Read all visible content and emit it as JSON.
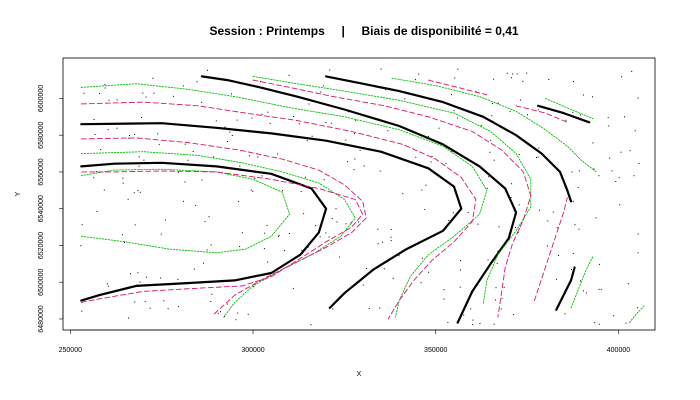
{
  "chart_data": {
    "type": "contour",
    "title": "Session : Printemps     |     Biais de disponibilité = 0,41",
    "xlabel": "X",
    "ylabel": "Y",
    "xlim": [
      248000,
      410000
    ],
    "ylim": [
      6474000,
      6622000
    ],
    "x_ticks": [
      250000,
      300000,
      350000,
      400000
    ],
    "x_tick_labels": [
      "250000",
      "300000",
      "350000",
      "400000"
    ],
    "y_ticks": [
      6480000,
      6500000,
      6520000,
      6540000,
      6560000,
      6580000,
      6600000
    ],
    "y_tick_labels": [
      "6480000",
      "6500000",
      "6520000",
      "6540000",
      "6560000",
      "6580000",
      "6600000"
    ],
    "grid": false,
    "colors": {
      "black": "#000000",
      "green": "#00c000",
      "pink": "#e0106f",
      "frame": "#000000"
    },
    "series": [
      {
        "style": "black",
        "points": [
          [
            253000,
            6490000
          ],
          [
            258000,
            6493000
          ],
          [
            268000,
            6498000
          ],
          [
            282000,
            6499500
          ],
          [
            295000,
            6501000
          ],
          [
            305000,
            6505000
          ],
          [
            313000,
            6515000
          ],
          [
            318000,
            6527000
          ],
          [
            320000,
            6540000
          ],
          [
            316000,
            6551000
          ],
          [
            305000,
            6559000
          ],
          [
            290000,
            6563000
          ],
          [
            275000,
            6565000
          ],
          [
            262000,
            6564500
          ],
          [
            253000,
            6563000
          ]
        ]
      },
      {
        "style": "black",
        "points": [
          [
            253000,
            6586000
          ],
          [
            275000,
            6586500
          ],
          [
            290000,
            6584000
          ],
          [
            305000,
            6581000
          ],
          [
            320000,
            6577000
          ],
          [
            335000,
            6571000
          ],
          [
            348000,
            6562000
          ],
          [
            355000,
            6552000
          ],
          [
            357000,
            6540000
          ],
          [
            352000,
            6528000
          ],
          [
            342000,
            6518000
          ],
          [
            333000,
            6507000
          ],
          [
            325000,
            6494000
          ],
          [
            321000,
            6486000
          ]
        ]
      },
      {
        "style": "black",
        "points": [
          [
            286000,
            6612000
          ],
          [
            293000,
            6610000
          ],
          [
            302000,
            6606000
          ],
          [
            312000,
            6601000
          ],
          [
            325000,
            6594000
          ],
          [
            340000,
            6585000
          ],
          [
            352000,
            6575000
          ],
          [
            362000,
            6563000
          ],
          [
            369000,
            6551000
          ],
          [
            372000,
            6538000
          ],
          [
            370000,
            6524000
          ],
          [
            365000,
            6510000
          ],
          [
            360000,
            6495000
          ],
          [
            356000,
            6478000
          ]
        ]
      },
      {
        "style": "black",
        "points": [
          [
            320000,
            6612000
          ],
          [
            330000,
            6608000
          ],
          [
            340000,
            6604000
          ],
          [
            352000,
            6598000
          ],
          [
            363000,
            6590000
          ],
          [
            372000,
            6580000
          ],
          [
            379000,
            6570000
          ],
          [
            384000,
            6560000
          ],
          [
            386000,
            6550000
          ],
          [
            387000,
            6544000
          ]
        ]
      },
      {
        "style": "black",
        "points": [
          [
            378000,
            6596000
          ],
          [
            385000,
            6592000
          ],
          [
            392000,
            6587000
          ]
        ]
      },
      {
        "style": "black",
        "points": [
          [
            383000,
            6485000
          ],
          [
            385000,
            6493000
          ],
          [
            387000,
            6501000
          ],
          [
            388000,
            6508000
          ]
        ]
      },
      {
        "style": "green",
        "points": [
          [
            253000,
            6525000
          ],
          [
            265000,
            6522000
          ],
          [
            277000,
            6518000
          ],
          [
            290000,
            6516000
          ],
          [
            298000,
            6518000
          ],
          [
            305000,
            6525000
          ],
          [
            310000,
            6537000
          ],
          [
            308000,
            6549000
          ],
          [
            300000,
            6556000
          ],
          [
            290000,
            6560000
          ],
          [
            275000,
            6561500
          ],
          [
            262000,
            6561000
          ],
          [
            253000,
            6558000
          ]
        ]
      },
      {
        "style": "green",
        "points": [
          [
            253000,
            6570000
          ],
          [
            270000,
            6571000
          ],
          [
            285000,
            6569000
          ],
          [
            297000,
            6565000
          ],
          [
            308000,
            6560000
          ],
          [
            318000,
            6554000
          ],
          [
            325000,
            6545000
          ],
          [
            328000,
            6535000
          ],
          [
            324000,
            6525000
          ],
          [
            317000,
            6516000
          ],
          [
            308000,
            6507000
          ],
          [
            300000,
            6498000
          ],
          [
            295000,
            6489000
          ],
          [
            292000,
            6481000
          ]
        ]
      },
      {
        "style": "green",
        "points": [
          [
            253000,
            6606000
          ],
          [
            268000,
            6608000
          ],
          [
            282000,
            6605000
          ],
          [
            295000,
            6601000
          ],
          [
            310000,
            6595000
          ],
          [
            325000,
            6590000
          ],
          [
            340000,
            6583000
          ],
          [
            352000,
            6574000
          ],
          [
            360000,
            6563000
          ],
          [
            364000,
            6550000
          ],
          [
            362000,
            6537000
          ],
          [
            355000,
            6525000
          ],
          [
            348000,
            6515000
          ],
          [
            343000,
            6503000
          ],
          [
            340000,
            6490000
          ],
          [
            339000,
            6481000
          ]
        ]
      },
      {
        "style": "green",
        "points": [
          [
            300000,
            6612000
          ],
          [
            312000,
            6608000
          ],
          [
            325000,
            6604000
          ],
          [
            340000,
            6599000
          ],
          [
            355000,
            6592000
          ],
          [
            365000,
            6582000
          ],
          [
            372000,
            6570000
          ],
          [
            376000,
            6556000
          ],
          [
            376000,
            6541000
          ],
          [
            372000,
            6528000
          ],
          [
            367000,
            6515000
          ],
          [
            364000,
            6501000
          ],
          [
            363000,
            6488000
          ]
        ]
      },
      {
        "style": "green",
        "points": [
          [
            338000,
            6611000
          ],
          [
            350000,
            6607000
          ],
          [
            362000,
            6601000
          ],
          [
            372000,
            6593000
          ],
          [
            380000,
            6583000
          ],
          [
            386000,
            6574000
          ],
          [
            390000,
            6566000
          ],
          [
            394000,
            6560000
          ]
        ]
      },
      {
        "style": "green",
        "points": [
          [
            380000,
            6600000
          ],
          [
            387000,
            6594000
          ],
          [
            393000,
            6589000
          ]
        ]
      },
      {
        "style": "green",
        "points": [
          [
            387000,
            6486000
          ],
          [
            389000,
            6496000
          ],
          [
            391000,
            6506000
          ],
          [
            393000,
            6514000
          ]
        ]
      },
      {
        "style": "green",
        "points": [
          [
            403000,
            6478000
          ],
          [
            405000,
            6483000
          ],
          [
            407000,
            6487000
          ]
        ]
      },
      {
        "style": "pink",
        "points": [
          [
            253000,
            6489000
          ],
          [
            258000,
            6491000
          ],
          [
            270000,
            6495000
          ],
          [
            283000,
            6496500
          ],
          [
            297000,
            6498000
          ],
          [
            305000,
            6503000
          ],
          [
            313000,
            6513000
          ],
          [
            320000,
            6522000
          ],
          [
            327000,
            6530000
          ],
          [
            330000,
            6537000
          ],
          [
            328000,
            6545000
          ],
          [
            318000,
            6551000
          ],
          [
            305000,
            6556000
          ],
          [
            290000,
            6560000
          ],
          [
            275000,
            6560500
          ],
          [
            262000,
            6560000
          ],
          [
            253000,
            6560000
          ]
        ]
      },
      {
        "style": "pink",
        "points": [
          [
            253000,
            6578000
          ],
          [
            268000,
            6578500
          ],
          [
            282000,
            6576000
          ],
          [
            296000,
            6572000
          ],
          [
            308000,
            6567000
          ],
          [
            318000,
            6561000
          ],
          [
            325000,
            6553000
          ],
          [
            330000,
            6544000
          ],
          [
            331000,
            6535000
          ],
          [
            327000,
            6527000
          ],
          [
            320000,
            6519000
          ],
          [
            312000,
            6511000
          ],
          [
            303000,
            6502000
          ],
          [
            295000,
            6493000
          ],
          [
            289000,
            6482000
          ]
        ]
      },
      {
        "style": "pink",
        "points": [
          [
            253000,
            6597000
          ],
          [
            270000,
            6598000
          ],
          [
            285000,
            6596000
          ],
          [
            298000,
            6592000
          ],
          [
            312000,
            6588000
          ],
          [
            327000,
            6582000
          ],
          [
            341000,
            6575000
          ],
          [
            350000,
            6567000
          ],
          [
            357000,
            6557000
          ],
          [
            361000,
            6545000
          ],
          [
            360000,
            6533000
          ],
          [
            355000,
            6522000
          ],
          [
            349000,
            6512000
          ],
          [
            344000,
            6501000
          ],
          [
            340000,
            6490000
          ],
          [
            337000,
            6480000
          ]
        ]
      },
      {
        "style": "pink",
        "points": [
          [
            300000,
            6610000
          ],
          [
            310000,
            6606000
          ],
          [
            322000,
            6601000
          ],
          [
            336000,
            6596000
          ],
          [
            348000,
            6590000
          ],
          [
            360000,
            6582000
          ],
          [
            368000,
            6572000
          ],
          [
            374000,
            6560000
          ],
          [
            376000,
            6547000
          ],
          [
            374000,
            6534000
          ],
          [
            371000,
            6521000
          ],
          [
            369000,
            6508000
          ],
          [
            368000,
            6494000
          ],
          [
            367000,
            6481000
          ]
        ]
      },
      {
        "style": "pink",
        "points": [
          [
            348000,
            6610000
          ],
          [
            356000,
            6606000
          ],
          [
            364000,
            6602000
          ]
        ]
      },
      {
        "style": "pink",
        "points": [
          [
            372000,
            6596000
          ],
          [
            380000,
            6592000
          ],
          [
            386000,
            6587000
          ]
        ]
      },
      {
        "style": "pink",
        "points": [
          [
            377000,
            6490000
          ],
          [
            379000,
            6502000
          ],
          [
            381000,
            6514000
          ],
          [
            383000,
            6526000
          ],
          [
            385000,
            6538000
          ],
          [
            386000,
            6546000
          ]
        ]
      }
    ]
  }
}
